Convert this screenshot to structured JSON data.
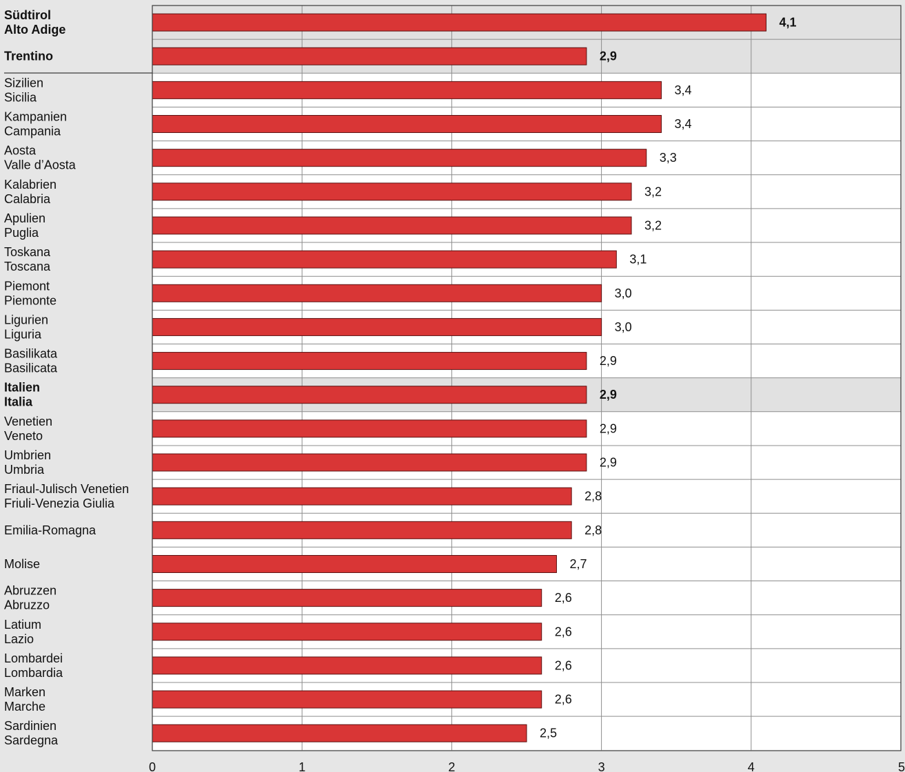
{
  "chart_data": {
    "type": "bar",
    "orientation": "horizontal",
    "xlim": [
      0,
      5
    ],
    "x_ticks": [
      "0",
      "1",
      "2",
      "3",
      "4",
      "5"
    ],
    "grid": true,
    "colors": {
      "bar": "#d93636",
      "bar_border": "#5a1010",
      "highlight_background": "#e1e1e1",
      "plot_background": "#ffffff",
      "page_background": "#e6e6e6",
      "grid": "#8c8c8c"
    },
    "categories": [
      {
        "label": [
          "Südtirol",
          "Alto Adige"
        ],
        "value": 4.1,
        "value_label": "4,1",
        "bold": true,
        "highlight": true
      },
      {
        "label": [
          "Trentino"
        ],
        "value": 2.9,
        "value_label": "2,9",
        "bold": true,
        "highlight": true
      },
      {
        "label": [
          "Sizilien",
          "Sicilia"
        ],
        "value": 3.4,
        "value_label": "3,4",
        "bold": false,
        "highlight": false
      },
      {
        "label": [
          "Kampanien",
          "Campania"
        ],
        "value": 3.4,
        "value_label": "3,4",
        "bold": false,
        "highlight": false
      },
      {
        "label": [
          "Aosta",
          "Valle d’Aosta"
        ],
        "value": 3.3,
        "value_label": "3,3",
        "bold": false,
        "highlight": false
      },
      {
        "label": [
          "Kalabrien",
          "Calabria"
        ],
        "value": 3.2,
        "value_label": "3,2",
        "bold": false,
        "highlight": false
      },
      {
        "label": [
          "Apulien",
          "Puglia"
        ],
        "value": 3.2,
        "value_label": "3,2",
        "bold": false,
        "highlight": false
      },
      {
        "label": [
          "Toskana",
          "Toscana"
        ],
        "value": 3.1,
        "value_label": "3,1",
        "bold": false,
        "highlight": false
      },
      {
        "label": [
          "Piemont",
          "Piemonte"
        ],
        "value": 3.0,
        "value_label": "3,0",
        "bold": false,
        "highlight": false
      },
      {
        "label": [
          "Ligurien",
          "Liguria"
        ],
        "value": 3.0,
        "value_label": "3,0",
        "bold": false,
        "highlight": false
      },
      {
        "label": [
          "Basilikata",
          "Basilicata"
        ],
        "value": 2.9,
        "value_label": "2,9",
        "bold": false,
        "highlight": false
      },
      {
        "label": [
          "Italien",
          "Italia"
        ],
        "value": 2.9,
        "value_label": "2,9",
        "bold": true,
        "highlight": true
      },
      {
        "label": [
          "Venetien",
          "Veneto"
        ],
        "value": 2.9,
        "value_label": "2,9",
        "bold": false,
        "highlight": false
      },
      {
        "label": [
          "Umbrien",
          "Umbria"
        ],
        "value": 2.9,
        "value_label": "2,9",
        "bold": false,
        "highlight": false
      },
      {
        "label": [
          "Friaul-Julisch Venetien",
          "Friuli-Venezia Giulia"
        ],
        "value": 2.8,
        "value_label": "2,8",
        "bold": false,
        "highlight": false
      },
      {
        "label": [
          "Emilia-Romagna"
        ],
        "value": 2.8,
        "value_label": "2,8",
        "bold": false,
        "highlight": false
      },
      {
        "label": [
          "Molise"
        ],
        "value": 2.7,
        "value_label": "2,7",
        "bold": false,
        "highlight": false
      },
      {
        "label": [
          "Abruzzen",
          "Abruzzo"
        ],
        "value": 2.6,
        "value_label": "2,6",
        "bold": false,
        "highlight": false
      },
      {
        "label": [
          "Latium",
          "Lazio"
        ],
        "value": 2.6,
        "value_label": "2,6",
        "bold": false,
        "highlight": false
      },
      {
        "label": [
          "Lombardei",
          "Lombardia"
        ],
        "value": 2.6,
        "value_label": "2,6",
        "bold": false,
        "highlight": false
      },
      {
        "label": [
          "Marken",
          "Marche"
        ],
        "value": 2.6,
        "value_label": "2,6",
        "bold": false,
        "highlight": false
      },
      {
        "label": [
          "Sardinien",
          "Sardegna"
        ],
        "value": 2.5,
        "value_label": "2,5",
        "bold": false,
        "highlight": false
      }
    ]
  }
}
